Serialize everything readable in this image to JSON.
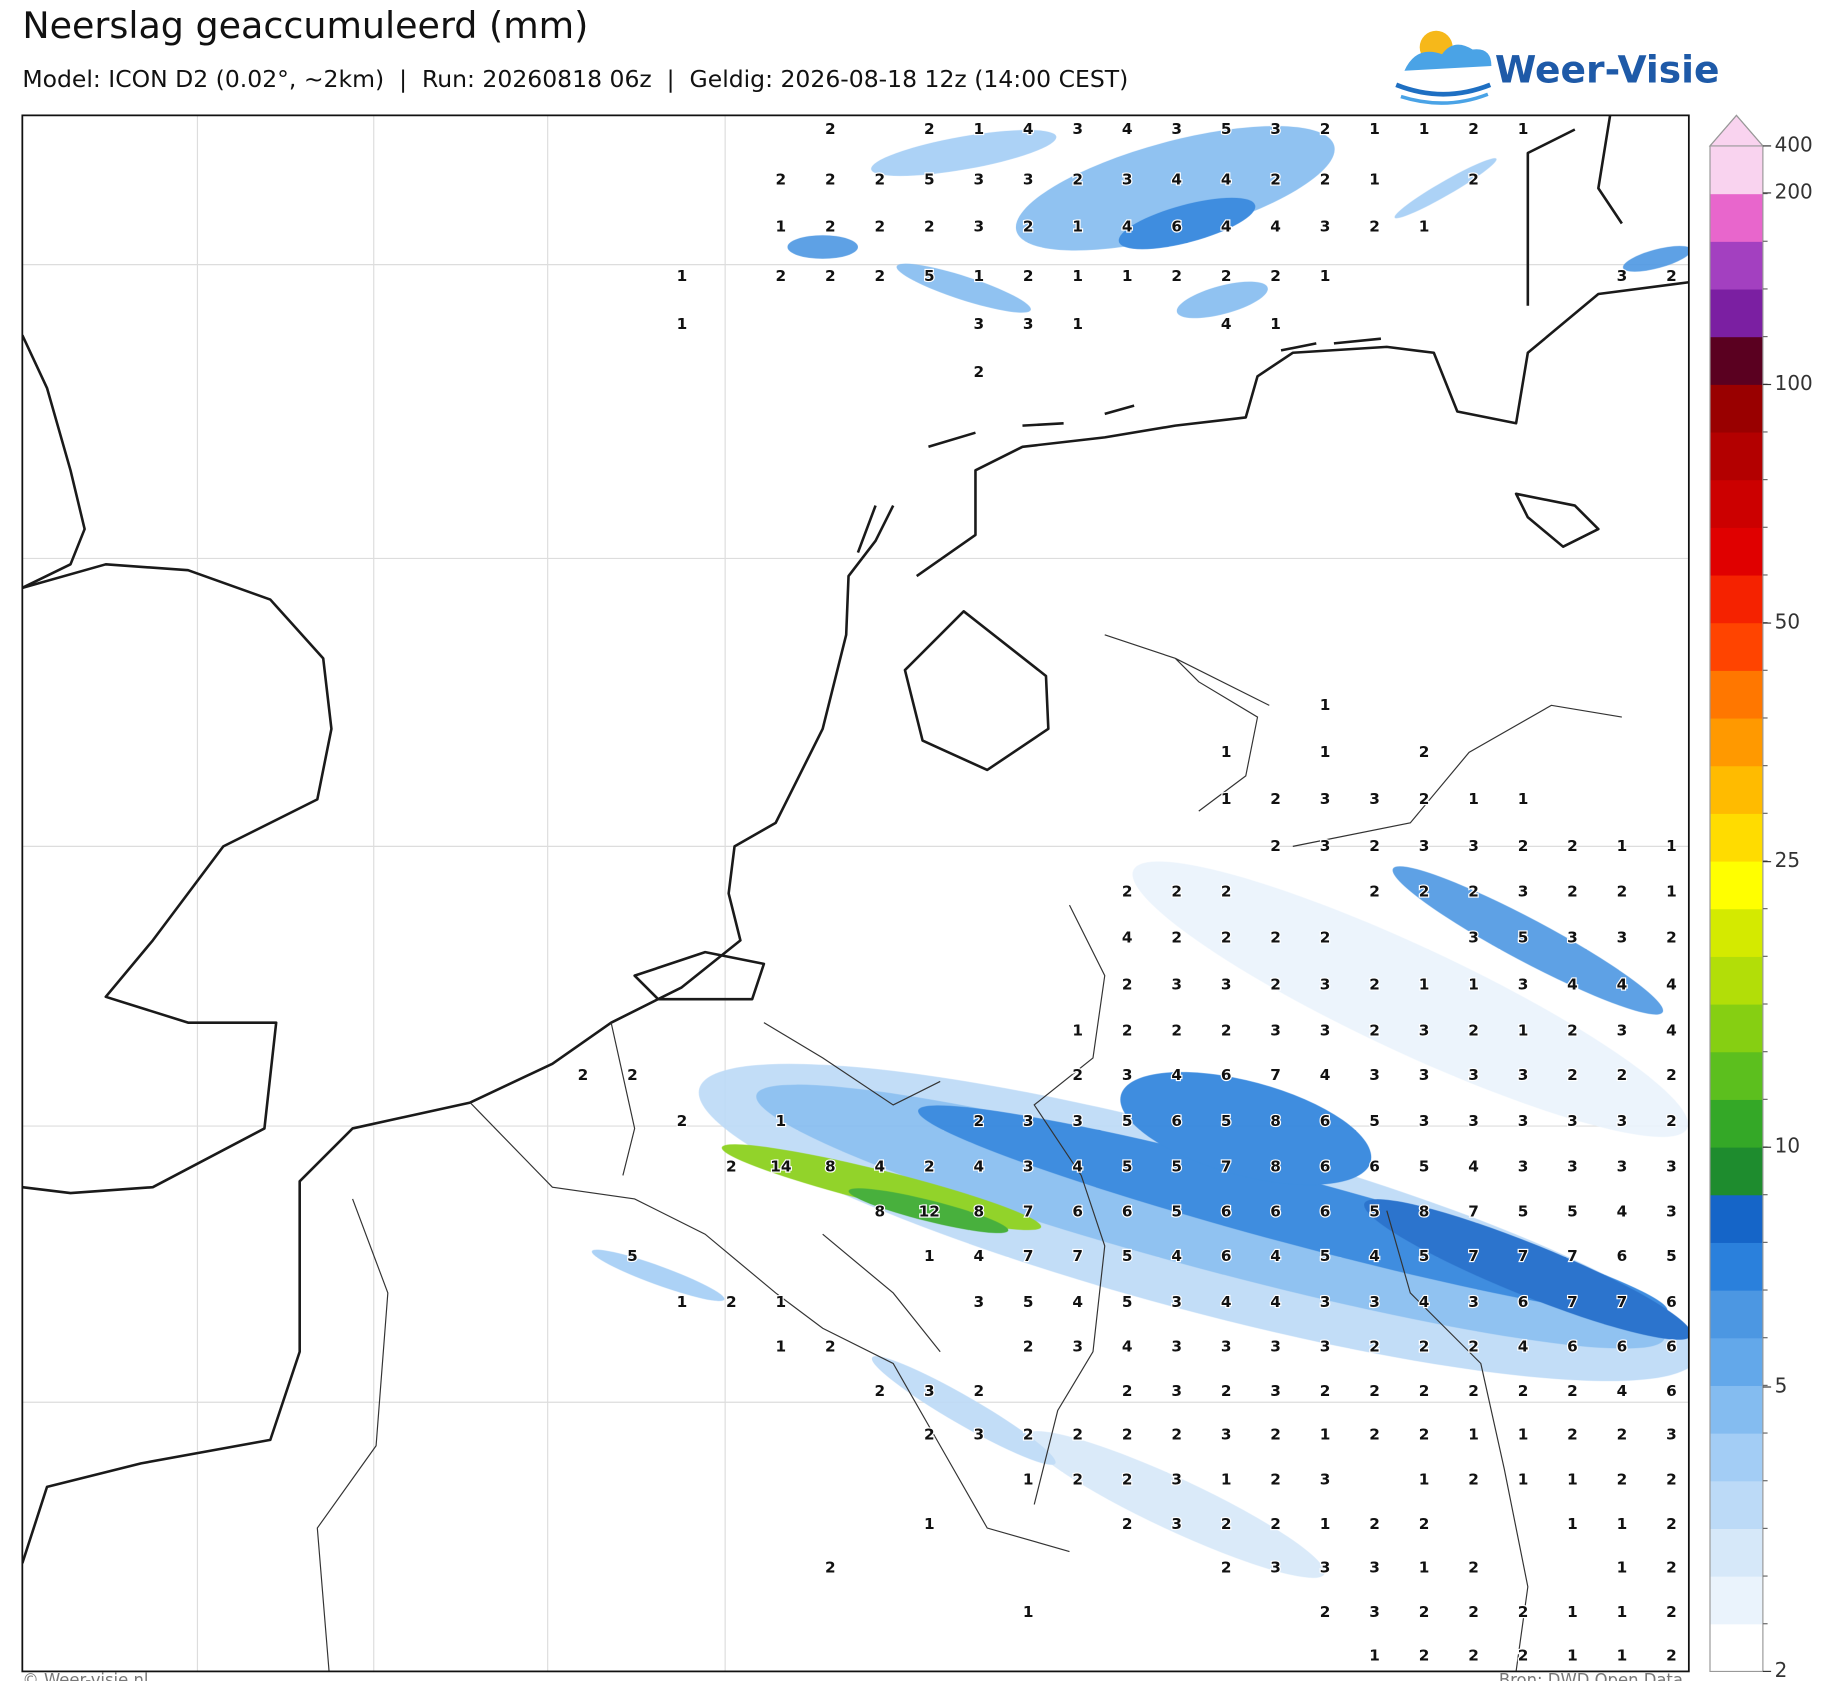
{
  "header": {
    "title": "Neerslag geaccumuleerd (mm)",
    "subtitle": "Model: ICON D2 (0.02°, ~2km)  |  Run: 20260818 06z  |  Geldig: 2026-08-18 12z (14:00 CEST)",
    "logo": "Weer-Visie"
  },
  "footer": {
    "copyright": "© Weer-visie.nl",
    "source": "Bron: DWD Open Data"
  },
  "colorbar": {
    "ticks": [
      2,
      5,
      10,
      25,
      50,
      100,
      200,
      400
    ],
    "colors": [
      "#ffffff",
      "#eaf3fc",
      "#d6e8f9",
      "#bcdaf7",
      "#a3cdf5",
      "#84bcf0",
      "#63a8ea",
      "#4c97e2",
      "#2a80dc",
      "#1565c8",
      "#1e8c2e",
      "#34a827",
      "#5cbf1e",
      "#86cf12",
      "#b2de08",
      "#d4ea00",
      "#ffff00",
      "#ffdc00",
      "#ffbb00",
      "#ff9900",
      "#ff7700",
      "#ff4400",
      "#f52200",
      "#e00000",
      "#cc0000",
      "#b30000",
      "#990000",
      "#5a0020",
      "#7b1fa2",
      "#a340c0",
      "#e866cc",
      "#f9d3ef"
    ]
  },
  "grid_labels": [
    [
      null,
      null,
      null,
      null,
      null,
      2,
      null,
      2,
      1,
      4,
      3,
      4,
      3,
      5,
      3,
      2,
      1,
      1,
      2,
      1,
      null,
      null,
      null
    ],
    [
      null,
      null,
      null,
      null,
      2,
      2,
      2,
      5,
      3,
      3,
      2,
      3,
      4,
      4,
      2,
      2,
      1,
      null,
      2,
      null,
      null,
      null,
      null
    ],
    [
      null,
      null,
      null,
      null,
      1,
      2,
      2,
      2,
      3,
      2,
      1,
      4,
      6,
      4,
      4,
      3,
      2,
      1,
      null,
      null,
      null,
      null,
      null
    ],
    [
      null,
      null,
      1,
      null,
      2,
      2,
      2,
      5,
      1,
      2,
      1,
      1,
      2,
      2,
      2,
      1,
      null,
      null,
      null,
      null,
      null,
      3,
      2
    ],
    [
      null,
      null,
      1,
      null,
      null,
      null,
      null,
      null,
      3,
      3,
      1,
      null,
      null,
      4,
      1,
      null,
      null,
      null,
      null,
      null,
      null,
      null,
      null
    ],
    [
      null,
      null,
      null,
      null,
      null,
      null,
      null,
      null,
      2,
      null,
      null,
      null,
      null,
      null,
      null,
      null,
      null,
      null,
      null,
      null,
      null,
      null,
      null
    ],
    [
      null,
      null,
      null,
      null,
      null,
      null,
      null,
      null,
      null,
      null,
      null,
      null,
      null,
      null,
      null,
      1,
      null,
      null,
      null,
      null,
      null,
      null,
      null
    ],
    [
      null,
      null,
      null,
      null,
      null,
      null,
      null,
      null,
      null,
      null,
      null,
      null,
      null,
      1,
      null,
      1,
      null,
      2,
      null,
      null,
      null,
      null,
      null
    ],
    [
      null,
      null,
      null,
      null,
      null,
      null,
      null,
      null,
      null,
      null,
      null,
      null,
      null,
      1,
      2,
      3,
      3,
      2,
      1,
      1,
      null,
      null,
      null
    ],
    [
      null,
      null,
      null,
      null,
      null,
      null,
      null,
      null,
      null,
      null,
      null,
      null,
      null,
      null,
      2,
      3,
      2,
      3,
      3,
      2,
      2,
      1,
      1
    ],
    [
      null,
      null,
      null,
      null,
      null,
      null,
      null,
      null,
      null,
      null,
      null,
      2,
      2,
      2,
      null,
      null,
      2,
      2,
      2,
      3,
      2,
      2,
      1
    ],
    [
      null,
      null,
      null,
      null,
      null,
      null,
      null,
      null,
      null,
      null,
      null,
      4,
      2,
      2,
      2,
      2,
      null,
      null,
      3,
      5,
      3,
      3,
      2
    ],
    [
      null,
      null,
      null,
      null,
      null,
      null,
      null,
      null,
      null,
      null,
      null,
      2,
      3,
      3,
      2,
      3,
      2,
      1,
      1,
      3,
      4,
      4,
      4
    ],
    [
      null,
      null,
      null,
      null,
      null,
      null,
      null,
      null,
      null,
      null,
      1,
      2,
      2,
      2,
      3,
      3,
      2,
      3,
      2,
      1,
      2,
      3,
      4
    ],
    [
      2,
      2,
      null,
      null,
      null,
      null,
      null,
      null,
      null,
      null,
      2,
      3,
      4,
      6,
      7,
      4,
      3,
      3,
      3,
      3,
      2,
      2,
      2
    ],
    [
      null,
      null,
      2,
      null,
      1,
      null,
      null,
      null,
      2,
      3,
      3,
      5,
      6,
      5,
      8,
      6,
      5,
      3,
      3,
      3,
      3,
      3,
      2
    ],
    [
      null,
      null,
      null,
      2,
      14,
      8,
      4,
      2,
      4,
      3,
      4,
      5,
      5,
      7,
      8,
      6,
      6,
      5,
      4,
      3,
      3,
      3,
      3
    ],
    [
      null,
      null,
      null,
      null,
      null,
      null,
      8,
      12,
      8,
      7,
      6,
      6,
      5,
      6,
      6,
      6,
      5,
      8,
      7,
      5,
      5,
      4,
      3
    ],
    [
      null,
      5,
      null,
      null,
      null,
      null,
      null,
      1,
      4,
      7,
      7,
      5,
      4,
      6,
      4,
      5,
      4,
      5,
      7,
      7,
      7,
      6,
      5
    ],
    [
      null,
      null,
      1,
      2,
      1,
      null,
      null,
      null,
      3,
      5,
      4,
      5,
      3,
      4,
      4,
      3,
      3,
      4,
      3,
      6,
      7,
      7,
      6
    ],
    [
      null,
      null,
      null,
      null,
      1,
      2,
      null,
      null,
      null,
      2,
      3,
      4,
      3,
      3,
      3,
      3,
      2,
      2,
      2,
      4,
      6,
      6,
      6
    ],
    [
      null,
      null,
      null,
      null,
      null,
      null,
      2,
      3,
      2,
      null,
      null,
      2,
      3,
      2,
      3,
      2,
      2,
      2,
      2,
      2,
      2,
      4,
      6
    ],
    [
      null,
      null,
      null,
      null,
      null,
      null,
      null,
      2,
      3,
      2,
      2,
      2,
      2,
      3,
      2,
      1,
      2,
      2,
      1,
      1,
      2,
      2,
      3
    ],
    [
      null,
      null,
      null,
      null,
      null,
      null,
      null,
      null,
      null,
      1,
      2,
      2,
      3,
      1,
      2,
      3,
      null,
      1,
      2,
      1,
      1,
      2,
      2
    ],
    [
      null,
      null,
      null,
      null,
      null,
      null,
      null,
      1,
      null,
      null,
      null,
      2,
      3,
      2,
      2,
      1,
      2,
      2,
      null,
      null,
      1,
      1,
      2
    ],
    [
      null,
      null,
      null,
      null,
      null,
      2,
      null,
      null,
      null,
      null,
      null,
      null,
      null,
      2,
      3,
      3,
      3,
      1,
      2,
      null,
      null,
      1,
      2
    ],
    [
      null,
      null,
      null,
      null,
      null,
      null,
      null,
      null,
      null,
      1,
      null,
      null,
      null,
      null,
      null,
      2,
      3,
      2,
      2,
      2,
      1,
      1,
      2
    ],
    [
      null,
      null,
      null,
      null,
      null,
      null,
      null,
      null,
      null,
      null,
      null,
      null,
      null,
      null,
      null,
      null,
      1,
      2,
      2,
      2,
      1,
      1,
      2
    ]
  ]
}
